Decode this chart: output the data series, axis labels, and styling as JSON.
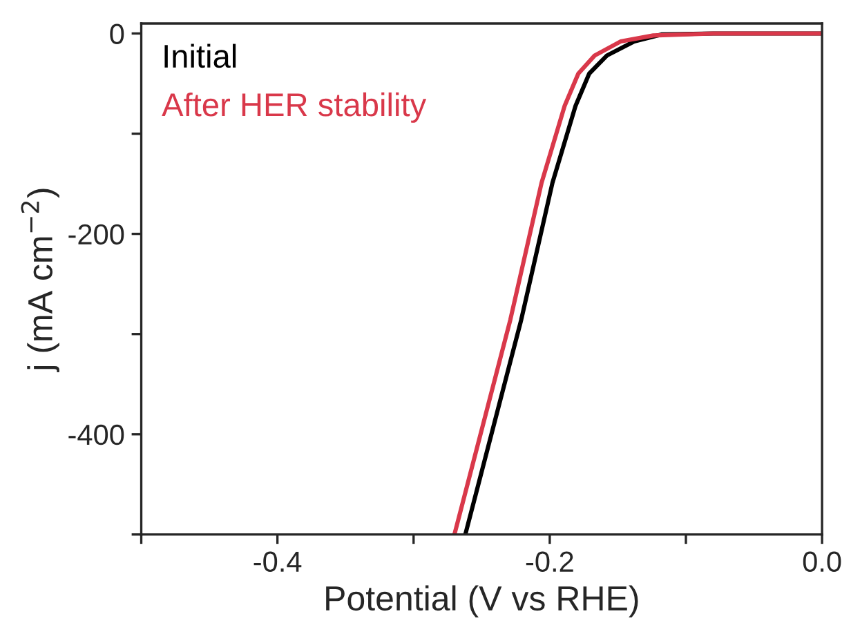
{
  "chart_data": {
    "type": "line",
    "xlabel": "Potential (V vs RHE)",
    "ylabel": "j (mA cm$^{−2}$)",
    "xlim": [
      -0.5,
      0.0
    ],
    "ylim": [
      -500,
      10
    ],
    "xticks": [
      {
        "value": -0.5,
        "label": null
      },
      -0.4,
      {
        "value": -0.3,
        "label": null
      },
      -0.2,
      {
        "value": -0.1,
        "label": null
      },
      {
        "value": 0.0,
        "label": "0.0"
      }
    ],
    "yticks": [
      0,
      {
        "value": -100,
        "label": null
      },
      -200,
      {
        "value": -300,
        "label": null
      },
      -400,
      {
        "value": -500,
        "label": null
      }
    ],
    "legend": "top left",
    "grid": false,
    "series": [
      {
        "name": "Initial",
        "color": "#000000",
        "x": [
          -0.262,
          -0.221,
          -0.198,
          -0.181,
          -0.171,
          -0.158,
          -0.138,
          -0.118,
          -0.08,
          0.0
        ],
        "values": [
          -500,
          -286,
          -149,
          -72,
          -40,
          -22,
          -8,
          -1,
          0,
          0
        ]
      },
      {
        "name": "After HER stability",
        "color": "#d9384a",
        "x": [
          -0.27,
          -0.229,
          -0.206,
          -0.189,
          -0.179,
          -0.167,
          -0.148,
          -0.124,
          -0.08,
          0.0
        ],
        "values": [
          -500,
          -286,
          -149,
          -72,
          -40,
          -22,
          -8,
          -2,
          0,
          0
        ]
      }
    ]
  }
}
